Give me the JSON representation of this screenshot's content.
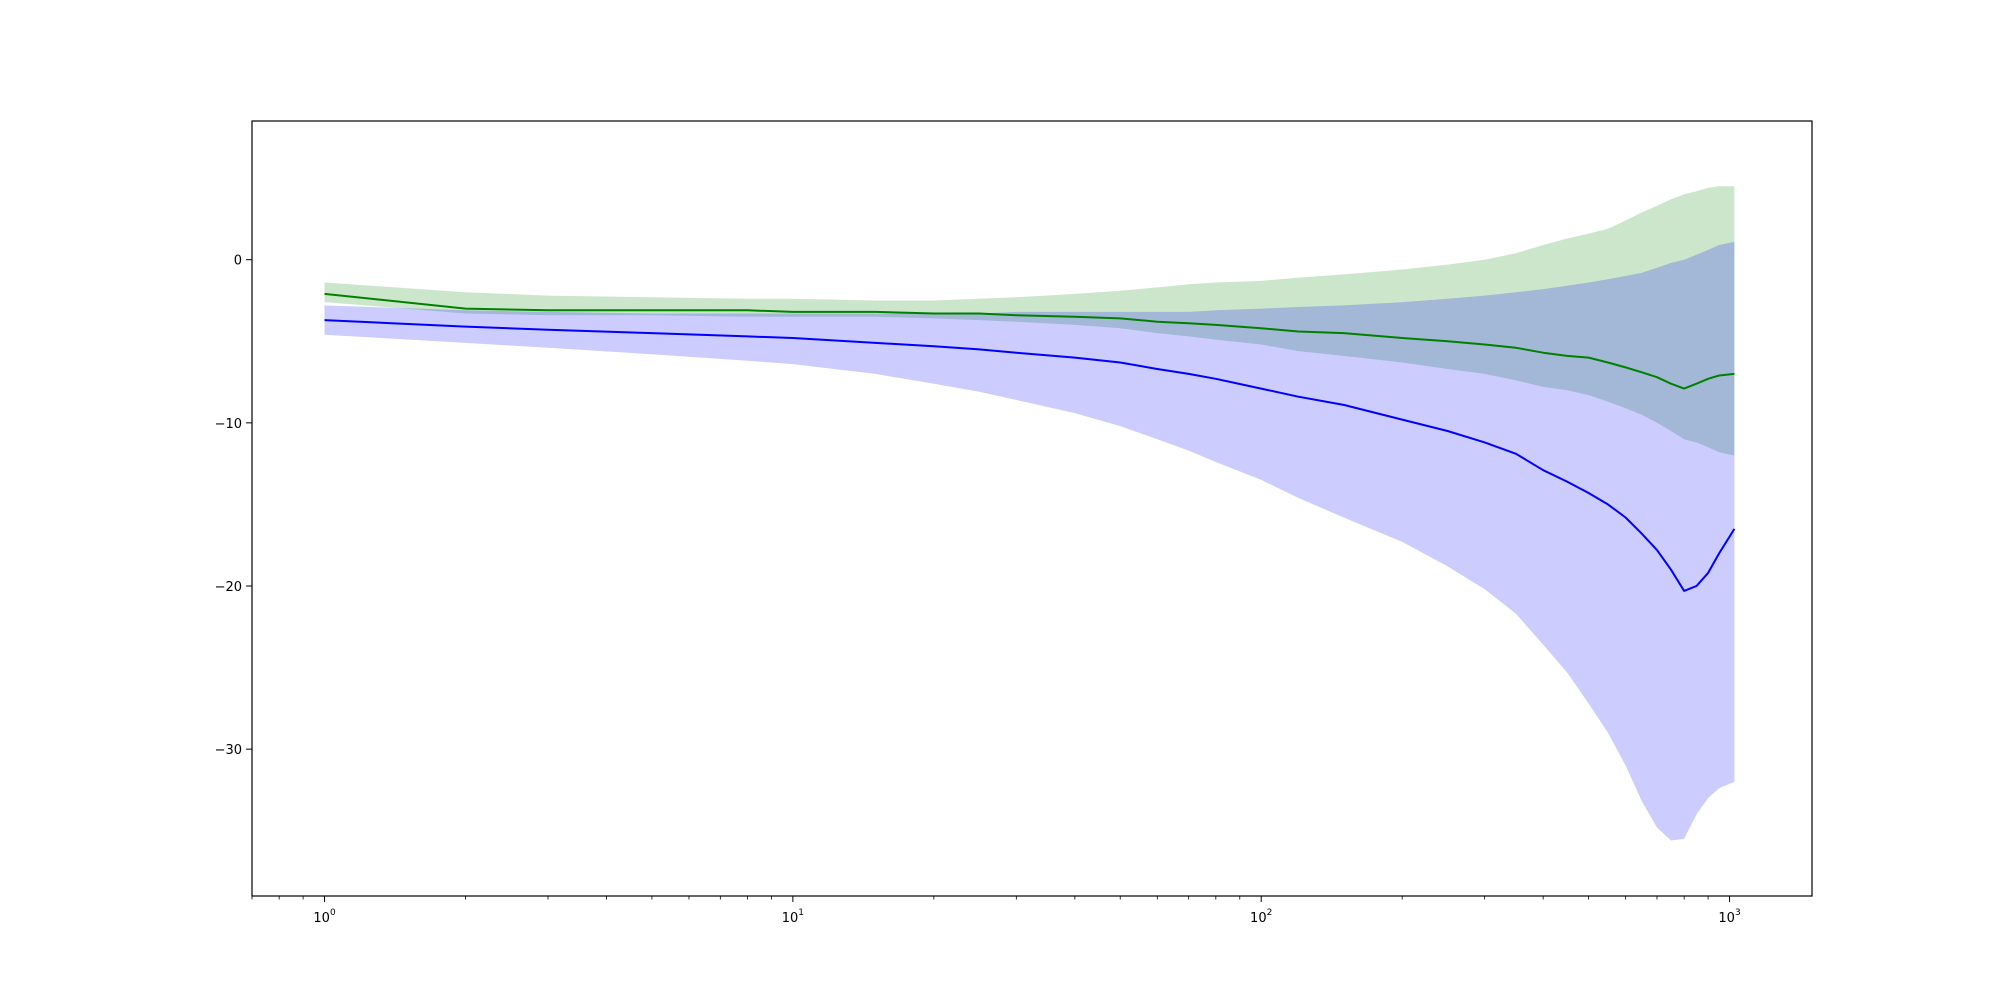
{
  "chart_data": {
    "type": "area",
    "title": "",
    "xlabel": "",
    "ylabel": "",
    "x_scale": "log",
    "xlim": [
      0.7,
      1500
    ],
    "ylim": [
      -39,
      8.5
    ],
    "grid": false,
    "x_ticks": [
      {
        "value": 1,
        "base": "10",
        "exp": "0"
      },
      {
        "value": 10,
        "base": "10",
        "exp": "1"
      },
      {
        "value": 100,
        "base": "10",
        "exp": "2"
      },
      {
        "value": 1000,
        "base": "10",
        "exp": "3"
      }
    ],
    "y_ticks": [
      {
        "value": 0,
        "label": "0"
      },
      {
        "value": -10,
        "label": "−10"
      },
      {
        "value": -20,
        "label": "−20"
      },
      {
        "value": -30,
        "label": "−30"
      }
    ],
    "x": [
      1,
      2,
      3,
      5,
      8,
      10,
      15,
      20,
      25,
      30,
      40,
      50,
      60,
      70,
      80,
      100,
      120,
      150,
      200,
      250,
      300,
      350,
      400,
      450,
      500,
      550,
      600,
      650,
      700,
      750,
      800,
      850,
      900,
      950,
      1024
    ],
    "series": [
      {
        "color": "#008000",
        "band_color": "#008000",
        "mean": [
          -2.1,
          -3.0,
          -3.1,
          -3.1,
          -3.1,
          -3.2,
          -3.2,
          -3.3,
          -3.3,
          -3.4,
          -3.5,
          -3.6,
          -3.8,
          -3.9,
          -4.0,
          -4.2,
          -4.4,
          -4.5,
          -4.8,
          -5.0,
          -5.2,
          -5.4,
          -5.7,
          -5.9,
          -6.0,
          -6.3,
          -6.6,
          -6.9,
          -7.2,
          -7.6,
          -7.9,
          -7.6,
          -7.3,
          -7.1,
          -7.0
        ],
        "upper": [
          -1.4,
          -2.0,
          -2.2,
          -2.3,
          -2.4,
          -2.4,
          -2.5,
          -2.5,
          -2.4,
          -2.3,
          -2.1,
          -1.9,
          -1.7,
          -1.5,
          -1.4,
          -1.3,
          -1.1,
          -0.9,
          -0.6,
          -0.3,
          0.0,
          0.4,
          0.9,
          1.3,
          1.6,
          1.9,
          2.4,
          2.9,
          3.3,
          3.7,
          4.0,
          4.2,
          4.4,
          4.5,
          4.5
        ],
        "lower": [
          -2.6,
          -3.3,
          -3.4,
          -3.4,
          -3.5,
          -3.5,
          -3.5,
          -3.6,
          -3.7,
          -3.8,
          -4.0,
          -4.2,
          -4.5,
          -4.7,
          -4.9,
          -5.2,
          -5.6,
          -5.9,
          -6.3,
          -6.7,
          -7.0,
          -7.4,
          -7.8,
          -8.0,
          -8.3,
          -8.7,
          -9.1,
          -9.5,
          -10.0,
          -10.5,
          -11.0,
          -11.2,
          -11.5,
          -11.8,
          -12.0
        ]
      },
      {
        "color": "#0000ff",
        "band_color": "#0000ff",
        "mean": [
          -3.7,
          -4.1,
          -4.3,
          -4.5,
          -4.7,
          -4.8,
          -5.1,
          -5.3,
          -5.5,
          -5.7,
          -6.0,
          -6.3,
          -6.7,
          -7.0,
          -7.3,
          -7.9,
          -8.4,
          -8.9,
          -9.8,
          -10.5,
          -11.2,
          -11.9,
          -12.9,
          -13.6,
          -14.3,
          -15.0,
          -15.8,
          -16.8,
          -17.8,
          -19.0,
          -20.3,
          -20.0,
          -19.2,
          -18.0,
          -16.5
        ],
        "upper": [
          -2.8,
          -3.1,
          -3.2,
          -3.3,
          -3.3,
          -3.3,
          -3.3,
          -3.3,
          -3.3,
          -3.2,
          -3.2,
          -3.2,
          -3.2,
          -3.2,
          -3.1,
          -3.0,
          -2.9,
          -2.8,
          -2.6,
          -2.4,
          -2.2,
          -2.0,
          -1.8,
          -1.6,
          -1.4,
          -1.2,
          -1.0,
          -0.8,
          -0.5,
          -0.2,
          0.0,
          0.3,
          0.6,
          0.9,
          1.1
        ],
        "lower": [
          -4.6,
          -5.1,
          -5.4,
          -5.8,
          -6.2,
          -6.4,
          -7.0,
          -7.6,
          -8.1,
          -8.6,
          -9.4,
          -10.2,
          -11.0,
          -11.7,
          -12.4,
          -13.5,
          -14.6,
          -15.8,
          -17.3,
          -18.8,
          -20.2,
          -21.7,
          -23.6,
          -25.3,
          -27.2,
          -29.0,
          -31.0,
          -33.2,
          -34.8,
          -35.6,
          -35.5,
          -34.0,
          -33.0,
          -32.4,
          -32.0
        ]
      }
    ]
  }
}
